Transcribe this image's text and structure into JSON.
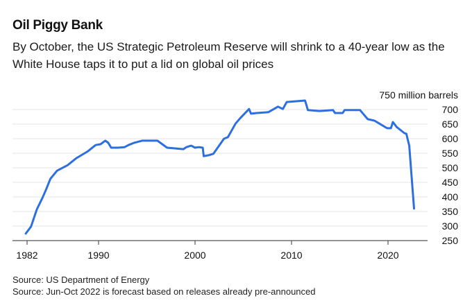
{
  "header": {
    "title": "Oil Piggy Bank",
    "subtitle": "By October, the US Strategic Petroleum Reserve will shrink to a 40-year low as the White House taps it to put a lid on global oil prices"
  },
  "footer": {
    "source_1": "Source: US Department of Energy",
    "source_2": "Source: Jun-Oct 2022 is forecast based on releases already pre-announced"
  },
  "colors": {
    "line": "#2b6fe0",
    "grid": "#e6e6e6",
    "axis": "#555555"
  },
  "chart_data": {
    "type": "line",
    "title": "Oil Piggy Bank",
    "subtitle": "By October, the US Strategic Petroleum Reserve will shrink to a 40-year low as the White House taps it to put a lid on global oil prices",
    "xlabel": "",
    "ylabel": "million barrels",
    "y_unit_label": "750 million barrels",
    "xlim": [
      1982,
      2024.1
    ],
    "ylim": [
      250,
      750
    ],
    "x_ticks": [
      1982,
      1990,
      2000,
      2010,
      2020
    ],
    "x_tick_labels": [
      "1982",
      "1990",
      "2000",
      "2010",
      "2020"
    ],
    "y_ticks": [
      250,
      300,
      350,
      400,
      450,
      500,
      550,
      600,
      650,
      700
    ],
    "y_tick_labels": [
      "250",
      "300",
      "350",
      "400",
      "450",
      "500",
      "550",
      "600",
      "650",
      "700"
    ],
    "grid": true,
    "y_axis_position": "right",
    "series": [
      {
        "name": "US Strategic Petroleum Reserve",
        "x": [
          1982.45,
          1983.0,
          1983.6,
          1984.2,
          1984.6,
          1985.0,
          1985.7,
          1986.8,
          1987.7,
          1988.9,
          1989.7,
          1990.2,
          1990.7,
          1991.0,
          1991.3,
          1992.0,
          1992.7,
          1993.1,
          1993.7,
          1994.5,
          1996.1,
          1997.1,
          1998.8,
          1999.1,
          1999.6,
          2000.0,
          2000.4,
          2000.8,
          2000.9,
          2001.4,
          2001.9,
          2003.0,
          2003.4,
          2004.2,
          2004.7,
          2005.6,
          2005.8,
          2006.4,
          2007.6,
          2008.6,
          2009.1,
          2009.5,
          2011.4,
          2011.7,
          2012.9,
          2014.3,
          2014.5,
          2015.3,
          2015.5,
          2017.1,
          2017.9,
          2018.6,
          2019.1,
          2019.9,
          2020.3,
          2020.5,
          2020.9,
          2021.7,
          2021.9,
          2022.2,
          2022.7
        ],
        "values": [
          274,
          298,
          357,
          398,
          428,
          462,
          490,
          509,
          533,
          557,
          578,
          581,
          593,
          586,
          569,
          569,
          571,
          578,
          586,
          593,
          593,
          569,
          564,
          571,
          576,
          569,
          571,
          569,
          540,
          543,
          548,
          600,
          605,
          652,
          671,
          702,
          686,
          688,
          691,
          710,
          702,
          726,
          731,
          698,
          695,
          698,
          688,
          688,
          698,
          698,
          667,
          662,
          652,
          636,
          636,
          657,
          640,
          619,
          617,
          576,
          360
        ]
      }
    ]
  }
}
